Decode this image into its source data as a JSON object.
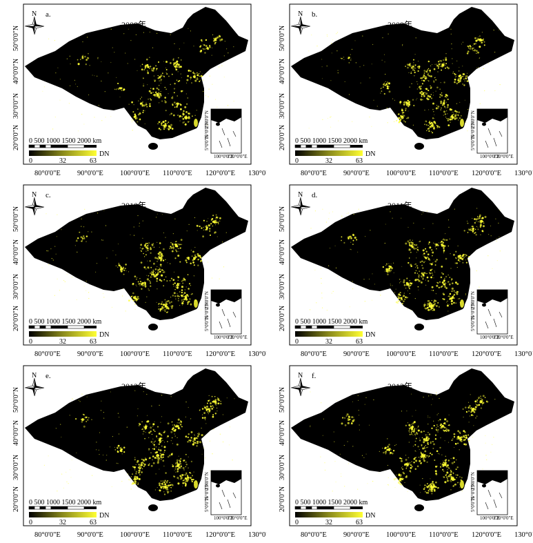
{
  "panels": [
    {
      "letter": "a.",
      "year": "2008年"
    },
    {
      "letter": "b.",
      "year": "2009年"
    },
    {
      "letter": "c.",
      "year": "2010年"
    },
    {
      "letter": "d.",
      "year": "2011年"
    },
    {
      "letter": "e.",
      "year": "2012年"
    },
    {
      "letter": "f.",
      "year": "2013年"
    }
  ],
  "north_label": "N",
  "scale_bar_label": "0    500  1000  1500  2000 km",
  "legend": {
    "title": "DN",
    "min": "0",
    "mid": "32",
    "max": "63",
    "color_low": "#000000",
    "color_high": "#ffff33"
  },
  "lat_labels": [
    "50°0'0\"N",
    "40°0'0\"N",
    "30°0'0\"N",
    "20°0'0\"N"
  ],
  "lon_labels": [
    "80°0'0\"E",
    "90°0'0\"E",
    "100°0'0\"E",
    "110°0'0\"E",
    "120°0'0\"E",
    "130°0'0\"E"
  ],
  "inset": {
    "lat_labels": [
      "25°0'0\"N",
      "15°0'0\"N",
      "5°0'0\"N"
    ],
    "lon_labels": [
      "100°0'0\"E",
      "120°0'0\"E"
    ]
  },
  "colors": {
    "map_fill": "#000000",
    "light": "#ffff33"
  }
}
